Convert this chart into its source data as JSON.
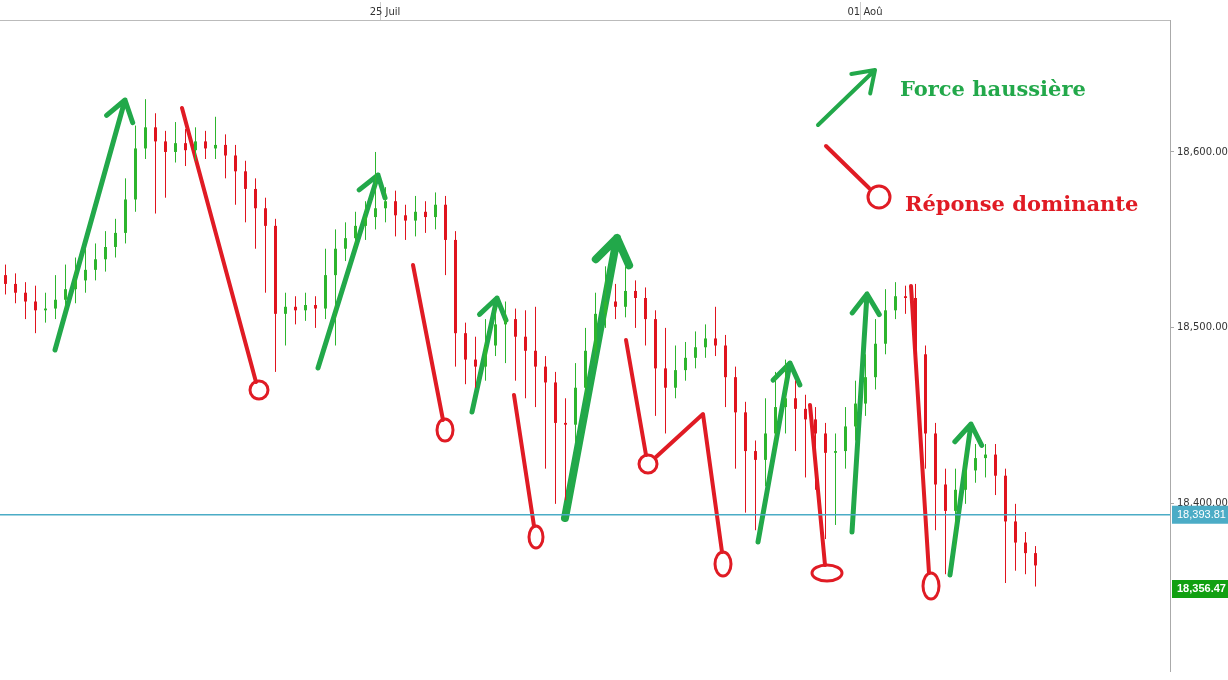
{
  "chart_data": {
    "type": "candlestick",
    "categories": [
      null,
      null,
      null,
      null,
      null,
      null,
      null,
      null,
      null,
      null,
      null,
      null,
      null,
      null,
      null,
      null,
      null,
      null,
      null,
      null,
      null,
      null,
      null,
      null,
      null,
      null,
      null,
      null,
      null,
      null,
      null,
      null,
      null,
      null,
      null,
      null,
      null,
      null,
      "25 Juil",
      null,
      null,
      null,
      null,
      null,
      null,
      null,
      null,
      null,
      null,
      null,
      null,
      null,
      null,
      null,
      null,
      null,
      null,
      null,
      null,
      null,
      null,
      null,
      null,
      null,
      null,
      null,
      null,
      null,
      null,
      null,
      null,
      null,
      null,
      null,
      null,
      null,
      null,
      null,
      null,
      null,
      null,
      null,
      null,
      null,
      null,
      null,
      "01 Aoû",
      null,
      null,
      null,
      null,
      null,
      null,
      null,
      null,
      null,
      null,
      null,
      null,
      null,
      null,
      null,
      null,
      null,
      null,
      null,
      null,
      null,
      null,
      null,
      null,
      null,
      null,
      null,
      null,
      null,
      null
    ],
    "ohlc": [
      [
        18530,
        18536,
        18519,
        18525
      ],
      [
        18525,
        18531,
        18514,
        18520
      ],
      [
        18520,
        18526,
        18505,
        18515
      ],
      [
        18515,
        18524,
        18497,
        18510
      ],
      [
        18510,
        18520,
        18503,
        18511
      ],
      [
        18511,
        18530,
        18505,
        18516
      ],
      [
        18516,
        18536,
        18510,
        18522
      ],
      [
        18522,
        18540,
        18514,
        18527
      ],
      [
        18527,
        18545,
        18520,
        18533
      ],
      [
        18533,
        18548,
        18527,
        18539
      ],
      [
        18539,
        18555,
        18532,
        18546
      ],
      [
        18546,
        18562,
        18540,
        18554
      ],
      [
        18554,
        18585,
        18548,
        18573
      ],
      [
        18573,
        18615,
        18566,
        18602
      ],
      [
        18602,
        18630,
        18596,
        18614
      ],
      [
        18614,
        18622,
        18565,
        18606
      ],
      [
        18606,
        18612,
        18574,
        18600
      ],
      [
        18600,
        18617,
        18594,
        18605
      ],
      [
        18605,
        18613,
        18592,
        18601
      ],
      [
        18601,
        18614,
        18595,
        18606
      ],
      [
        18606,
        18612,
        18596,
        18602
      ],
      [
        18602,
        18620,
        18596,
        18604
      ],
      [
        18604,
        18610,
        18585,
        18598
      ],
      [
        18598,
        18604,
        18570,
        18589
      ],
      [
        18589,
        18595,
        18560,
        18579
      ],
      [
        18579,
        18585,
        18545,
        18568
      ],
      [
        18568,
        18574,
        18520,
        18558
      ],
      [
        18558,
        18562,
        18475,
        18508
      ],
      [
        18508,
        18520,
        18490,
        18512
      ],
      [
        18512,
        18518,
        18502,
        18510
      ],
      [
        18510,
        18520,
        18504,
        18513
      ],
      [
        18513,
        18518,
        18500,
        18511
      ],
      [
        18511,
        18545,
        18505,
        18530
      ],
      [
        18530,
        18556,
        18490,
        18545
      ],
      [
        18545,
        18560,
        18538,
        18551
      ],
      [
        18551,
        18566,
        18544,
        18558
      ],
      [
        18558,
        18572,
        18550,
        18563
      ],
      [
        18563,
        18600,
        18556,
        18568
      ],
      [
        18568,
        18580,
        18560,
        18572
      ],
      [
        18572,
        18578,
        18552,
        18564
      ],
      [
        18564,
        18570,
        18550,
        18561
      ],
      [
        18561,
        18575,
        18552,
        18566
      ],
      [
        18566,
        18572,
        18554,
        18563
      ],
      [
        18563,
        18577,
        18556,
        18570
      ],
      [
        18570,
        18575,
        18530,
        18550
      ],
      [
        18550,
        18555,
        18478,
        18497
      ],
      [
        18497,
        18503,
        18468,
        18482
      ],
      [
        18482,
        18495,
        18466,
        18478
      ],
      [
        18478,
        18505,
        18470,
        18490
      ],
      [
        18490,
        18512,
        18484,
        18502
      ],
      [
        18502,
        18515,
        18480,
        18505
      ],
      [
        18505,
        18511,
        18470,
        18495
      ],
      [
        18495,
        18510,
        18460,
        18487
      ],
      [
        18487,
        18512,
        18455,
        18478
      ],
      [
        18478,
        18484,
        18420,
        18469
      ],
      [
        18469,
        18475,
        18400,
        18446
      ],
      [
        18446,
        18460,
        18402,
        18445
      ],
      [
        18445,
        18480,
        18435,
        18466
      ],
      [
        18466,
        18500,
        18458,
        18487
      ],
      [
        18487,
        18520,
        18480,
        18508
      ],
      [
        18508,
        18535,
        18500,
        18515
      ],
      [
        18515,
        18525,
        18505,
        18512
      ],
      [
        18512,
        18535,
        18506,
        18521
      ],
      [
        18521,
        18527,
        18500,
        18517
      ],
      [
        18517,
        18523,
        18490,
        18505
      ],
      [
        18505,
        18510,
        18450,
        18477
      ],
      [
        18477,
        18500,
        18440,
        18466
      ],
      [
        18466,
        18490,
        18460,
        18476
      ],
      [
        18476,
        18492,
        18470,
        18483
      ],
      [
        18483,
        18498,
        18477,
        18489
      ],
      [
        18489,
        18502,
        18483,
        18494
      ],
      [
        18494,
        18512,
        18484,
        18490
      ],
      [
        18490,
        18496,
        18455,
        18472
      ],
      [
        18472,
        18478,
        18420,
        18452
      ],
      [
        18452,
        18458,
        18395,
        18430
      ],
      [
        18430,
        18436,
        18385,
        18425
      ],
      [
        18425,
        18460,
        18410,
        18440
      ],
      [
        18440,
        18475,
        18430,
        18455
      ],
      [
        18455,
        18482,
        18440,
        18460
      ],
      [
        18460,
        18470,
        18430,
        18454
      ],
      [
        18454,
        18462,
        18415,
        18448
      ],
      [
        18448,
        18455,
        18408,
        18440
      ],
      [
        18440,
        18446,
        18380,
        18429
      ],
      [
        18429,
        18440,
        18388,
        18430
      ],
      [
        18430,
        18455,
        18420,
        18444
      ],
      [
        18444,
        18470,
        18436,
        18457
      ],
      [
        18457,
        18485,
        18450,
        18472
      ],
      [
        18472,
        18505,
        18465,
        18491
      ],
      [
        18491,
        18522,
        18485,
        18510
      ],
      [
        18510,
        18526,
        18505,
        18518
      ],
      [
        18518,
        18524,
        18508,
        18517
      ],
      [
        18517,
        18525,
        18470,
        18485
      ],
      [
        18485,
        18490,
        18420,
        18440
      ],
      [
        18440,
        18446,
        18385,
        18411
      ],
      [
        18411,
        18420,
        18360,
        18396
      ],
      [
        18396,
        18420,
        18375,
        18408
      ],
      [
        18408,
        18430,
        18400,
        18419
      ],
      [
        18419,
        18434,
        18412,
        18426
      ],
      [
        18426,
        18434,
        18415,
        18428
      ],
      [
        18428,
        18434,
        18405,
        18416
      ],
      [
        18416,
        18420,
        18355,
        18390
      ],
      [
        18390,
        18400,
        18362,
        18378
      ],
      [
        18378,
        18384,
        18360,
        18372
      ],
      [
        18372,
        18376,
        18353,
        18365
      ],
      null,
      null,
      null,
      null,
      null,
      null,
      null,
      null,
      null,
      null,
      null,
      null,
      null
    ],
    "ylim": [
      18305,
      18675
    ],
    "yticks": [
      {
        "value": 18400,
        "label": "18,400.00"
      },
      {
        "value": 18500,
        "label": "18,500.00"
      },
      {
        "value": 18600,
        "label": "18,600.00"
      }
    ],
    "ref_lines": [
      {
        "axis": "y",
        "value": 18393.81,
        "label": "18,393.81",
        "color": "#4bacc6"
      }
    ],
    "annotations": [
      "18,356.47",
      "Force haussière",
      "Réponse dominante"
    ]
  }
}
